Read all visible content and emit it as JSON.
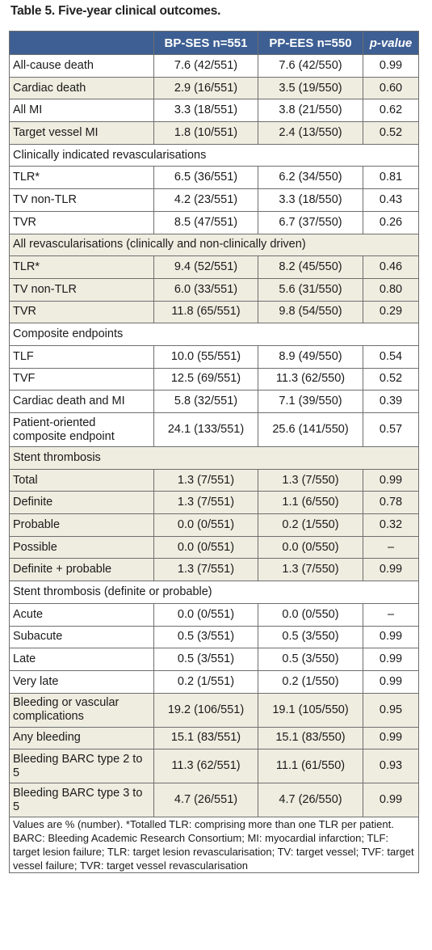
{
  "title": "Table 5. Five-year clinical outcomes.",
  "headers": [
    "",
    "BP-SES n=551",
    "PP-EES n=550",
    "p-value"
  ],
  "rows": [
    {
      "type": "data",
      "indent": false,
      "shade": false,
      "cells": [
        "All-cause death",
        "7.6 (42/551)",
        "7.6 (42/550)",
        "0.99"
      ]
    },
    {
      "type": "data",
      "indent": false,
      "shade": true,
      "cells": [
        "Cardiac death",
        "2.9 (16/551)",
        "3.5 (19/550)",
        "0.60"
      ]
    },
    {
      "type": "data",
      "indent": false,
      "shade": false,
      "cells": [
        "All MI",
        "3.3 (18/551)",
        "3.8 (21/550)",
        "0.62"
      ]
    },
    {
      "type": "data",
      "indent": false,
      "shade": true,
      "cells": [
        "Target vessel MI",
        "1.8 (10/551)",
        "2.4 (13/550)",
        "0.52"
      ]
    },
    {
      "type": "section",
      "shade": false,
      "label": "Clinically indicated revascularisations"
    },
    {
      "type": "data",
      "indent": true,
      "shade": false,
      "cells": [
        "TLR*",
        "6.5 (36/551)",
        "6.2 (34/550)",
        "0.81"
      ]
    },
    {
      "type": "data",
      "indent": true,
      "shade": false,
      "cells": [
        "TV non-TLR",
        "4.2 (23/551)",
        "3.3 (18/550)",
        "0.43"
      ]
    },
    {
      "type": "data",
      "indent": true,
      "shade": false,
      "cells": [
        "TVR",
        "8.5 (47/551)",
        "6.7 (37/550)",
        "0.26"
      ]
    },
    {
      "type": "section",
      "shade": true,
      "label": "All revascularisations (clinically and non-clinically driven)"
    },
    {
      "type": "data",
      "indent": true,
      "shade": true,
      "cells": [
        "TLR*",
        "9.4 (52/551)",
        "8.2 (45/550)",
        "0.46"
      ]
    },
    {
      "type": "data",
      "indent": true,
      "shade": true,
      "cells": [
        "TV non-TLR",
        "6.0 (33/551)",
        "5.6 (31/550)",
        "0.80"
      ]
    },
    {
      "type": "data",
      "indent": true,
      "shade": true,
      "cells": [
        "TVR",
        "11.8 (65/551)",
        "9.8 (54/550)",
        "0.29"
      ]
    },
    {
      "type": "section",
      "shade": false,
      "label": "Composite endpoints"
    },
    {
      "type": "data",
      "indent": true,
      "shade": false,
      "cells": [
        "TLF",
        "10.0 (55/551)",
        "8.9 (49/550)",
        "0.54"
      ]
    },
    {
      "type": "data",
      "indent": true,
      "shade": false,
      "cells": [
        "TVF",
        "12.5 (69/551)",
        "11.3 (62/550)",
        "0.52"
      ]
    },
    {
      "type": "data",
      "indent": true,
      "shade": false,
      "cells": [
        "Cardiac death and MI",
        "5.8 (32/551)",
        "7.1 (39/550)",
        "0.39"
      ]
    },
    {
      "type": "data",
      "indent": true,
      "shade": false,
      "tall": true,
      "cells": [
        "Patient-oriented composite endpoint",
        "24.1 (133/551)",
        "25.6 (141/550)",
        "0.57"
      ]
    },
    {
      "type": "section",
      "shade": true,
      "label": "Stent thrombosis"
    },
    {
      "type": "data",
      "indent": true,
      "shade": true,
      "cells": [
        "Total",
        "1.3 (7/551)",
        "1.3 (7/550)",
        "0.99"
      ]
    },
    {
      "type": "data",
      "indent": true,
      "shade": true,
      "cells": [
        "Definite",
        "1.3 (7/551)",
        "1.1 (6/550)",
        "0.78"
      ]
    },
    {
      "type": "data",
      "indent": true,
      "shade": true,
      "cells": [
        "Probable",
        "0.0 (0/551)",
        "0.2 (1/550)",
        "0.32"
      ]
    },
    {
      "type": "data",
      "indent": true,
      "shade": true,
      "cells": [
        "Possible",
        "0.0 (0/551)",
        "0.0 (0/550)",
        "–"
      ]
    },
    {
      "type": "data",
      "indent": true,
      "shade": true,
      "cells": [
        "Definite + probable",
        "1.3 (7/551)",
        "1.3 (7/550)",
        "0.99"
      ]
    },
    {
      "type": "section",
      "shade": false,
      "label": "Stent thrombosis (definite or probable)"
    },
    {
      "type": "data",
      "indent": true,
      "shade": false,
      "cells": [
        "Acute",
        "0.0 (0/551)",
        "0.0 (0/550)",
        "–"
      ]
    },
    {
      "type": "data",
      "indent": true,
      "shade": false,
      "cells": [
        "Subacute",
        "0.5 (3/551)",
        "0.5 (3/550)",
        "0.99"
      ]
    },
    {
      "type": "data",
      "indent": true,
      "shade": false,
      "cells": [
        "Late",
        "0.5 (3/551)",
        "0.5 (3/550)",
        "0.99"
      ]
    },
    {
      "type": "data",
      "indent": true,
      "shade": false,
      "cells": [
        "Very late",
        "0.2 (1/551)",
        "0.2 (1/550)",
        "0.99"
      ]
    },
    {
      "type": "data",
      "indent": false,
      "shade": true,
      "tall": true,
      "cells": [
        "Bleeding or vascular complications",
        "19.2 (106/551)",
        "19.1 (105/550)",
        "0.95"
      ]
    },
    {
      "type": "data",
      "indent": true,
      "shade": true,
      "cells": [
        "Any bleeding",
        "15.1 (83/551)",
        "15.1 (83/550)",
        "0.99"
      ]
    },
    {
      "type": "data",
      "indent": true,
      "shade": true,
      "tall": true,
      "cells": [
        "Bleeding BARC type 2 to 5",
        "11.3 (62/551)",
        "11.1 (61/550)",
        "0.93"
      ]
    },
    {
      "type": "data",
      "indent": true,
      "shade": true,
      "tall": true,
      "cells": [
        "Bleeding BARC type 3 to 5",
        "4.7 (26/551)",
        "4.7 (26/550)",
        "0.99"
      ]
    }
  ],
  "footnote": "Values are % (number). *Totalled TLR: comprising more than one TLR per patient. BARC: Bleeding Academic Research Consortium; MI: myocardial infarction; TLF: target lesion failure; TLR: target lesion revascularisation; TV: target vessel; TVF: target vessel failure; TVR: target vessel revascularisation",
  "colors": {
    "header_bg": "#3d5f93",
    "header_text": "#ffffff",
    "shade_bg": "#efede0",
    "border": "#6e6e6e"
  }
}
